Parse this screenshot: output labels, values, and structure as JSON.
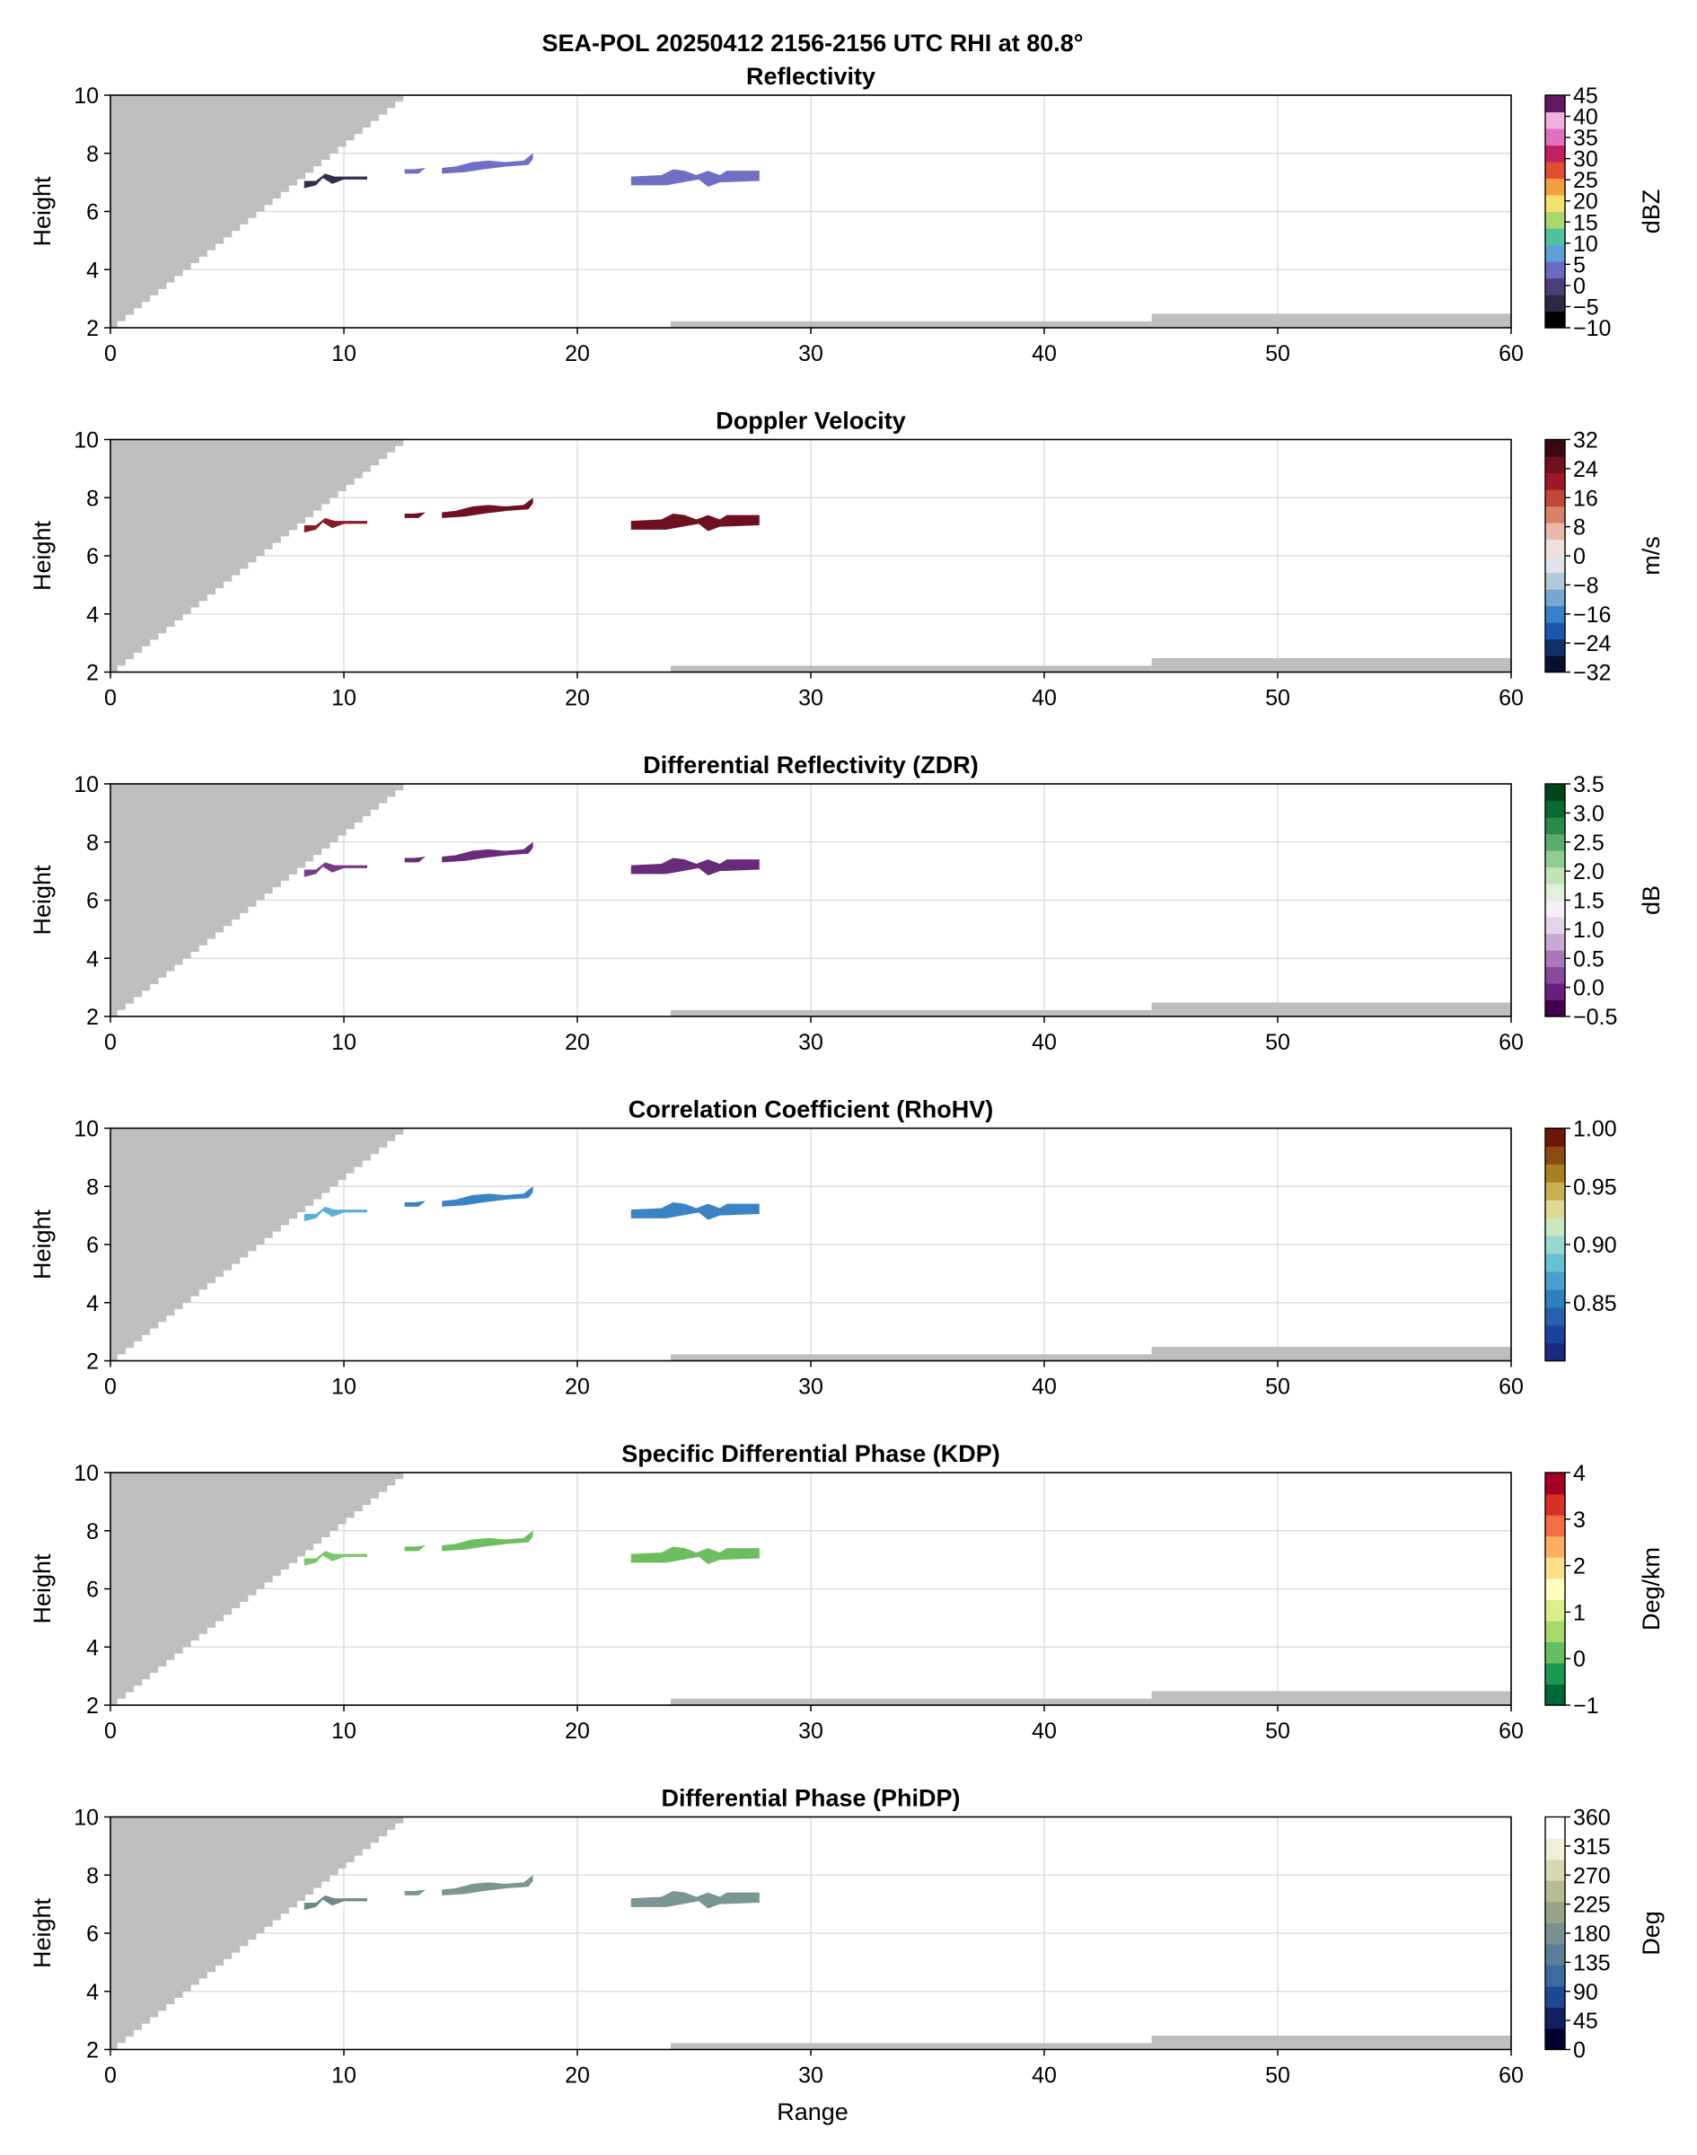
{
  "figure": {
    "title_line1": "SEA-POL 20250412 2156-2156 UTC RHI at 80.8°",
    "xlabel": "Range"
  },
  "chart_data": [
    {
      "type": "heatmap",
      "title": "Reflectivity",
      "xlabel": "",
      "ylabel": "Height",
      "xlim": [
        0,
        60
      ],
      "ylim": [
        2,
        10
      ],
      "xticks": [
        "0",
        "10",
        "20",
        "30",
        "40",
        "50",
        "60"
      ],
      "yticks": [
        "2",
        "4",
        "6",
        "8",
        "10"
      ],
      "grid": true,
      "colorbar": {
        "label": "dBZ",
        "range": [
          -10,
          45
        ],
        "ticks": [
          "−10",
          "−5",
          "0",
          "5",
          "10",
          "15",
          "20",
          "25",
          "30",
          "35",
          "40",
          "45"
        ],
        "colors": [
          "#000000",
          "#2a2a45",
          "#4a3f7a",
          "#6a6bc0",
          "#5fa0d8",
          "#4fc3a0",
          "#a8d86a",
          "#f3e070",
          "#f3a040",
          "#e05030",
          "#c02060",
          "#e070c0",
          "#f0b0e0",
          "#601860"
        ]
      },
      "echo_color": "#6f6fc4",
      "echo_color_near": "#2e2e4e"
    },
    {
      "type": "heatmap",
      "title": "Doppler Velocity",
      "xlabel": "",
      "ylabel": "Height",
      "xlim": [
        0,
        60
      ],
      "ylim": [
        2,
        10
      ],
      "xticks": [
        "0",
        "10",
        "20",
        "30",
        "40",
        "50",
        "60"
      ],
      "yticks": [
        "2",
        "4",
        "6",
        "8",
        "10"
      ],
      "grid": true,
      "colorbar": {
        "label": "m/s",
        "range": [
          -32,
          32
        ],
        "ticks": [
          "−32",
          "−24",
          "−16",
          "−8",
          "0",
          "8",
          "16",
          "24",
          "32"
        ],
        "colors": [
          "#0a1030",
          "#10306a",
          "#1a58b0",
          "#3a80c8",
          "#78a8d0",
          "#b0c8d8",
          "#e0e4e8",
          "#f0e0dc",
          "#e8b8a8",
          "#d8806a",
          "#c04838",
          "#a01828",
          "#701020",
          "#3a0810"
        ]
      },
      "echo_color": "#6e1020",
      "echo_color_near": "#8a1a28"
    },
    {
      "type": "heatmap",
      "title": "Differential Reflectivity (ZDR)",
      "xlabel": "",
      "ylabel": "Height",
      "xlim": [
        0,
        60
      ],
      "ylim": [
        2,
        10
      ],
      "xticks": [
        "0",
        "10",
        "20",
        "30",
        "40",
        "50",
        "60"
      ],
      "yticks": [
        "2",
        "4",
        "6",
        "8",
        "10"
      ],
      "grid": true,
      "colorbar": {
        "label": "dB",
        "range": [
          -0.5,
          3.5
        ],
        "ticks": [
          "−0.5",
          "0.0",
          "0.5",
          "1.0",
          "1.5",
          "2.0",
          "2.5",
          "3.0",
          "3.5"
        ],
        "colors": [
          "#40004b",
          "#6a1e80",
          "#8a4a9c",
          "#a878b8",
          "#c8a8d4",
          "#e4d4ea",
          "#f4f0f4",
          "#e0f0dc",
          "#c0e4b8",
          "#90cc90",
          "#5aae6a",
          "#2a8a48",
          "#0a6830",
          "#00441b"
        ]
      },
      "echo_color": "#6a2a7a",
      "echo_color_near": "#7a3a8a"
    },
    {
      "type": "heatmap",
      "title": "Correlation Coefficient (RhoHV)",
      "xlabel": "",
      "ylabel": "Height",
      "xlim": [
        0,
        60
      ],
      "ylim": [
        2,
        10
      ],
      "xticks": [
        "0",
        "10",
        "20",
        "30",
        "40",
        "50",
        "60"
      ],
      "yticks": [
        "2",
        "4",
        "6",
        "8",
        "10"
      ],
      "grid": true,
      "colorbar": {
        "label": "",
        "range": [
          0.8,
          1.0
        ],
        "ticks": [
          "0.85",
          "0.90",
          "0.95",
          "1.00"
        ],
        "tick_values": [
          0.85,
          0.9,
          0.95,
          1.0
        ],
        "colors": [
          "#1a2a80",
          "#2040a0",
          "#2860b0",
          "#3080c0",
          "#48a0cc",
          "#68c0d4",
          "#98d8d4",
          "#c8e8c0",
          "#e0d890",
          "#c8b050",
          "#a88020",
          "#8a4a10",
          "#701808"
        ]
      },
      "echo_color": "#3a84c6",
      "echo_color_near": "#5ab0d8"
    },
    {
      "type": "heatmap",
      "title": "Specific Differential Phase (KDP)",
      "xlabel": "",
      "ylabel": "Height",
      "xlim": [
        0,
        60
      ],
      "ylim": [
        2,
        10
      ],
      "xticks": [
        "0",
        "10",
        "20",
        "30",
        "40",
        "50",
        "60"
      ],
      "yticks": [
        "2",
        "4",
        "6",
        "8",
        "10"
      ],
      "grid": true,
      "colorbar": {
        "label": "Deg/km",
        "range": [
          -1,
          4
        ],
        "ticks": [
          "−1",
          "0",
          "1",
          "2",
          "3",
          "4"
        ],
        "colors": [
          "#006837",
          "#1a9850",
          "#66bd63",
          "#a6d96a",
          "#d9ef8b",
          "#ffffbf",
          "#fee08b",
          "#fdae61",
          "#f46d43",
          "#d73027",
          "#a50026"
        ]
      },
      "echo_color": "#6cbe5e",
      "echo_color_near": "#78c868"
    },
    {
      "type": "heatmap",
      "title": "Differential Phase (PhiDP)",
      "xlabel": "Range",
      "ylabel": "Height",
      "xlim": [
        0,
        60
      ],
      "ylim": [
        2,
        10
      ],
      "xticks": [
        "0",
        "10",
        "20",
        "30",
        "40",
        "50",
        "60"
      ],
      "yticks": [
        "2",
        "4",
        "6",
        "8",
        "10"
      ],
      "grid": true,
      "colorbar": {
        "label": "Deg",
        "range": [
          0,
          360
        ],
        "ticks": [
          "0",
          "45",
          "90",
          "135",
          "180",
          "225",
          "270",
          "315",
          "360"
        ],
        "colors": [
          "#000030",
          "#102060",
          "#204890",
          "#3a6aa0",
          "#5a7e98",
          "#7a9090",
          "#98a488",
          "#b8bc90",
          "#d8d8b0",
          "#f0f0d8",
          "#ffffff"
        ]
      },
      "echo_color": "#7a9692",
      "echo_color_near": "#6e8a88"
    }
  ],
  "blocked_region_color": "#bebebe"
}
